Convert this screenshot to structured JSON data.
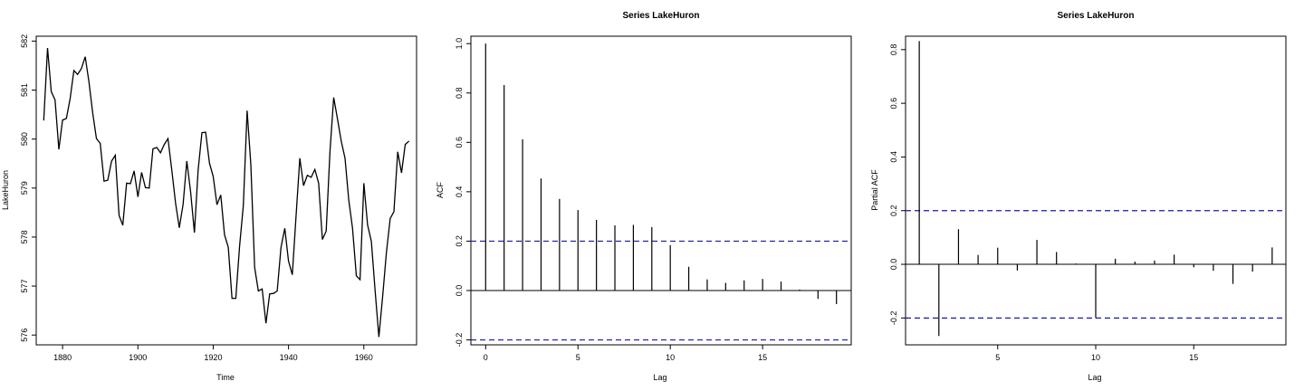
{
  "chart_data": [
    {
      "type": "line",
      "title": "",
      "xlabel": "Time",
      "ylabel": "LakeHuron",
      "xlim": [
        1873,
        1974
      ],
      "ylim": [
        575.8,
        582.1
      ],
      "xticks": [
        1880,
        1900,
        1920,
        1940,
        1960
      ],
      "yticks": [
        576,
        577,
        578,
        579,
        580,
        581,
        582
      ],
      "grid": false,
      "series": [
        {
          "x": [
            1875,
            1876,
            1877,
            1878,
            1879,
            1880,
            1881,
            1882,
            1883,
            1884,
            1885,
            1886,
            1887,
            1888,
            1889,
            1890,
            1891,
            1892,
            1893,
            1894,
            1895,
            1896,
            1897,
            1898,
            1899,
            1900,
            1901,
            1902,
            1903,
            1904,
            1905,
            1906,
            1907,
            1908,
            1909,
            1910,
            1911,
            1912,
            1913,
            1914,
            1915,
            1916,
            1917,
            1918,
            1919,
            1920,
            1921,
            1922,
            1923,
            1924,
            1925,
            1926,
            1927,
            1928,
            1929,
            1930,
            1931,
            1932,
            1933,
            1934,
            1935,
            1936,
            1937,
            1938,
            1939,
            1940,
            1941,
            1942,
            1943,
            1944,
            1945,
            1946,
            1947,
            1948,
            1949,
            1950,
            1951,
            1952,
            1953,
            1954,
            1955,
            1956,
            1957,
            1958,
            1959,
            1960,
            1961,
            1962,
            1963,
            1964,
            1965,
            1966,
            1967,
            1968,
            1969,
            1970,
            1971,
            1972
          ],
          "values": [
            580.38,
            581.86,
            580.97,
            580.8,
            579.79,
            580.39,
            580.42,
            580.82,
            581.4,
            581.32,
            581.44,
            581.68,
            581.17,
            580.53,
            580.01,
            579.91,
            579.14,
            579.16,
            579.55,
            579.67,
            578.44,
            578.24,
            579.1,
            579.09,
            579.35,
            578.82,
            579.32,
            579.01,
            579.0,
            579.8,
            579.83,
            579.72,
            579.89,
            580.01,
            579.37,
            578.69,
            578.19,
            578.67,
            579.55,
            578.92,
            578.09,
            579.37,
            580.13,
            580.14,
            579.51,
            579.24,
            578.66,
            578.86,
            578.05,
            577.79,
            576.75,
            576.75,
            577.82,
            578.64,
            580.58,
            579.48,
            577.38,
            576.9,
            576.94,
            576.24,
            576.84,
            576.85,
            576.9,
            577.79,
            578.18,
            577.51,
            577.23,
            578.42,
            579.61,
            579.05,
            579.26,
            579.22,
            579.38,
            579.1,
            577.95,
            578.12,
            579.75,
            580.85,
            580.41,
            579.96,
            579.61,
            578.76,
            578.18,
            577.21,
            577.13,
            579.1,
            578.25,
            577.91,
            576.89,
            575.96,
            576.8,
            577.68,
            578.38,
            578.52,
            579.74,
            579.31,
            579.89,
            579.96
          ]
        }
      ]
    },
    {
      "type": "bar",
      "title": "Series  LakeHuron",
      "xlabel": "Lag",
      "ylabel": "ACF",
      "xlim": [
        -0.8,
        19.8
      ],
      "ylim": [
        -0.22,
        1.03
      ],
      "xticks": [
        0,
        5,
        10,
        15
      ],
      "yticks": [
        "-0.2",
        "0.0",
        "0.2",
        "0.4",
        "0.6",
        "0.8",
        "1.0"
      ],
      "grid": false,
      "lags": [
        0,
        1,
        2,
        3,
        4,
        5,
        6,
        7,
        8,
        9,
        10,
        11,
        12,
        13,
        14,
        15,
        16,
        17,
        18,
        19
      ],
      "values": [
        1.0,
        0.832,
        0.612,
        0.454,
        0.371,
        0.326,
        0.286,
        0.264,
        0.266,
        0.257,
        0.184,
        0.096,
        0.045,
        0.031,
        0.041,
        0.047,
        0.036,
        0.004,
        -0.034,
        -0.055
      ],
      "confidence_band": [
        -0.2,
        0.2
      ]
    },
    {
      "type": "bar",
      "title": "Series  LakeHuron",
      "xlabel": "Lag",
      "ylabel": "Partial ACF",
      "xlim": [
        0.3,
        19.7
      ],
      "ylim": [
        -0.3,
        0.85
      ],
      "xticks": [
        5,
        10,
        15
      ],
      "yticks": [
        "-0.2",
        "0.0",
        "0.2",
        "0.4",
        "0.6",
        "0.8"
      ],
      "grid": false,
      "lags": [
        1,
        2,
        3,
        4,
        5,
        6,
        7,
        8,
        9,
        10,
        11,
        12,
        13,
        14,
        15,
        16,
        17,
        18,
        19
      ],
      "values": [
        0.832,
        -0.267,
        0.131,
        0.035,
        0.062,
        -0.023,
        0.091,
        0.046,
        0.003,
        -0.2,
        0.021,
        0.01,
        0.014,
        0.036,
        -0.011,
        -0.024,
        -0.073,
        -0.027,
        0.063
      ],
      "confidence_band": [
        -0.2,
        0.2
      ]
    }
  ]
}
